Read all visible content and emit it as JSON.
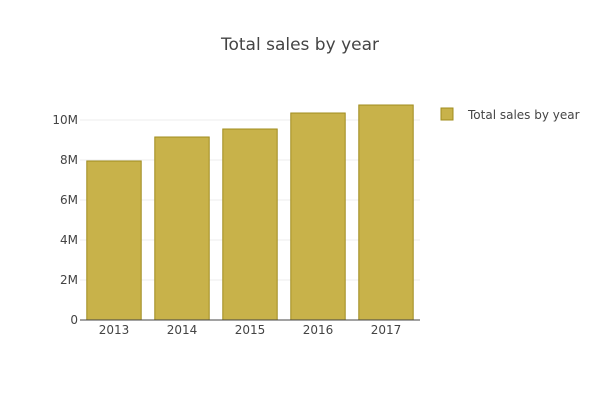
{
  "chart_data": {
    "type": "bar",
    "title": "Total sales by year",
    "xlabel": "",
    "ylabel": "",
    "categories": [
      "2013",
      "2014",
      "2015",
      "2016",
      "2017"
    ],
    "series": [
      {
        "name": "Total sales by year",
        "values": [
          7950000,
          9150000,
          9550000,
          10350000,
          10750000
        ]
      }
    ],
    "ylim": [
      0,
      11000000
    ],
    "yticks": [
      0,
      2000000,
      4000000,
      6000000,
      8000000,
      10000000
    ],
    "ytick_labels": [
      "0",
      "2M",
      "4M",
      "6M",
      "8M",
      "10M"
    ],
    "grid": true,
    "legend": {
      "position": "top-right"
    },
    "colors": {
      "bar_fill": "#c8b24a",
      "bar_stroke": "#a08c1e",
      "grid": "#eeeeee",
      "axis": "#444444",
      "text": "#444444"
    }
  }
}
